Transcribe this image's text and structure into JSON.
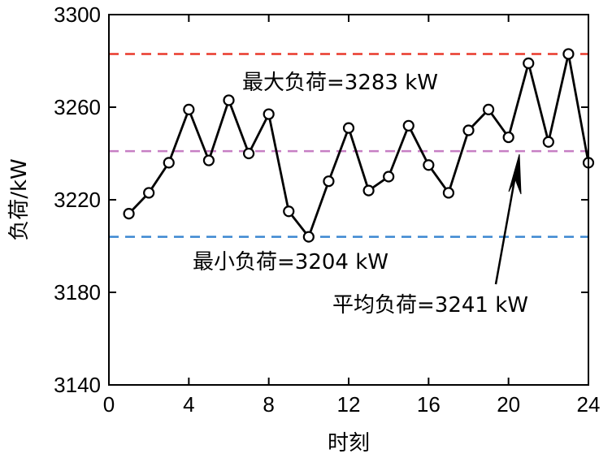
{
  "chart_data": {
    "type": "line",
    "xlabel": "时刻",
    "ylabel": "负荷/kW",
    "xlim": [
      0,
      24
    ],
    "ylim": [
      3140,
      3300
    ],
    "xticks": [
      0,
      4,
      8,
      12,
      16,
      20,
      24
    ],
    "yticks": [
      3140,
      3180,
      3220,
      3260,
      3300
    ],
    "grid": false,
    "series": [
      {
        "x": [
          1,
          2,
          3,
          4,
          5,
          6,
          7,
          8,
          9,
          10,
          11,
          12,
          13,
          14,
          15,
          16,
          17,
          18,
          19,
          20,
          21,
          22,
          23,
          24
        ],
        "values": [
          3214,
          3223,
          3236,
          3259,
          3237,
          3263,
          3240,
          3257,
          3215,
          3204,
          3228,
          3251,
          3224,
          3230,
          3252,
          3235,
          3223,
          3250,
          3259,
          3247,
          3279,
          3245,
          3283,
          3236
        ],
        "color": "#000000",
        "marker": "open-circle"
      }
    ],
    "reference_lines": [
      {
        "y": 3283,
        "color": "#e8392b",
        "label": "最大负荷=3283 kW"
      },
      {
        "y": 3241,
        "color": "#c77fc4",
        "label": "平均负荷=3241 kW"
      },
      {
        "y": 3204,
        "color": "#3b87d1",
        "label": "最小负荷=3204 kW"
      }
    ]
  }
}
